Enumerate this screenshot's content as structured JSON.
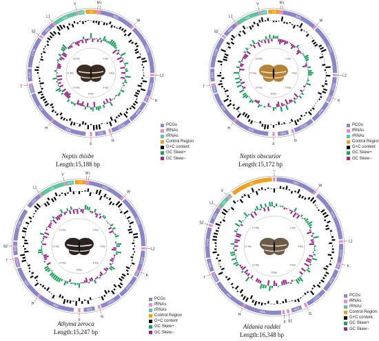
{
  "legend": [
    {
      "label": "PCGs",
      "color": "#8a86c8"
    },
    {
      "label": "tRNAs",
      "color": "#e58fc0"
    },
    {
      "label": "rRNAs",
      "color": "#5fc3a0"
    },
    {
      "label": "Control Region",
      "color": "#f0a020"
    },
    {
      "label": "G+C content",
      "color": "#000000"
    },
    {
      "label": "GC Skew+",
      "color": "#1aa35a"
    },
    {
      "label": "GC Skew−",
      "color": "#9a2a8c"
    }
  ],
  "panels": [
    {
      "species": "Neptis thisbe",
      "length": "Length:15,188 bp",
      "wing": "dark",
      "features": [
        {
          "type": "cr",
          "start": -5,
          "end": 6,
          "label": "CR"
        },
        {
          "type": "pcg",
          "start": 7,
          "end": 41,
          "label": "ND2"
        },
        {
          "type": "pcg",
          "start": 44,
          "end": 90,
          "label": "COX1"
        },
        {
          "type": "pcg",
          "start": 94,
          "end": 112,
          "label": "COX2"
        },
        {
          "type": "pcg",
          "start": 114,
          "end": 118,
          "label": "ATP8"
        },
        {
          "type": "pcg",
          "start": 119,
          "end": 140,
          "label": "ATP6"
        },
        {
          "type": "pcg",
          "start": 141,
          "end": 160,
          "label": "COX3"
        },
        {
          "type": "pcg",
          "start": 166,
          "end": 176,
          "label": "ND3"
        },
        {
          "type": "pcg",
          "start": 185,
          "end": 218,
          "label": "ND5"
        },
        {
          "type": "pcg",
          "start": 220,
          "end": 250,
          "label": "ND4"
        },
        {
          "type": "pcg",
          "start": 251,
          "end": 258,
          "label": "ND4L"
        },
        {
          "type": "pcg",
          "start": 262,
          "end": 274,
          "label": "ND6"
        },
        {
          "type": "pcg",
          "start": 275,
          "end": 304,
          "label": "CYTB"
        },
        {
          "type": "pcg",
          "start": 308,
          "end": 322,
          "label": "ND1"
        },
        {
          "type": "rrna",
          "start": 324,
          "end": 346,
          "label": "rrnL"
        },
        {
          "type": "rrna",
          "start": 348,
          "end": 354,
          "label": "rrnS"
        }
      ],
      "markers": [
        {
          "pos": 6,
          "label": "M"
        },
        {
          "pos": 8,
          "label": "I"
        },
        {
          "pos": 42,
          "label": "W"
        },
        {
          "pos": 92,
          "label": "L2"
        },
        {
          "pos": 113,
          "label": "K"
        },
        {
          "pos": 162,
          "label": "G"
        },
        {
          "pos": 180,
          "label": "F"
        },
        {
          "pos": 219,
          "label": "H"
        },
        {
          "pos": 259,
          "label": "T"
        },
        {
          "pos": 306,
          "label": "S2"
        },
        {
          "pos": 323,
          "label": "L1"
        },
        {
          "pos": 347,
          "label": "V"
        }
      ]
    },
    {
      "species": "Neptis obscurior",
      "length": "Length:15,172 bp",
      "wing": "orange",
      "features": [
        {
          "type": "cr",
          "start": -5,
          "end": 6,
          "label": "CR"
        },
        {
          "type": "pcg",
          "start": 7,
          "end": 41,
          "label": "ND2"
        },
        {
          "type": "pcg",
          "start": 44,
          "end": 90,
          "label": "COX1"
        },
        {
          "type": "pcg",
          "start": 94,
          "end": 112,
          "label": "COX2"
        },
        {
          "type": "pcg",
          "start": 114,
          "end": 118,
          "label": "ATP8"
        },
        {
          "type": "pcg",
          "start": 119,
          "end": 140,
          "label": "ATP6"
        },
        {
          "type": "pcg",
          "start": 141,
          "end": 160,
          "label": "COX3"
        },
        {
          "type": "pcg",
          "start": 166,
          "end": 176,
          "label": "ND3"
        },
        {
          "type": "pcg",
          "start": 185,
          "end": 218,
          "label": "ND5"
        },
        {
          "type": "pcg",
          "start": 220,
          "end": 250,
          "label": "ND4"
        },
        {
          "type": "pcg",
          "start": 251,
          "end": 258,
          "label": "ND4L"
        },
        {
          "type": "pcg",
          "start": 262,
          "end": 274,
          "label": "ND6"
        },
        {
          "type": "pcg",
          "start": 275,
          "end": 304,
          "label": "CYTB"
        },
        {
          "type": "pcg",
          "start": 308,
          "end": 322,
          "label": "ND1"
        },
        {
          "type": "rrna",
          "start": 324,
          "end": 346,
          "label": "rrnL"
        },
        {
          "type": "rrna",
          "start": 348,
          "end": 354,
          "label": "rrnS"
        }
      ],
      "markers": [
        {
          "pos": 6,
          "label": "M"
        },
        {
          "pos": 8,
          "label": "I"
        },
        {
          "pos": 42,
          "label": "W"
        },
        {
          "pos": 92,
          "label": "L2"
        },
        {
          "pos": 113,
          "label": "K"
        },
        {
          "pos": 162,
          "label": "G"
        },
        {
          "pos": 180,
          "label": "F"
        },
        {
          "pos": 219,
          "label": "H"
        },
        {
          "pos": 259,
          "label": "T"
        },
        {
          "pos": 306,
          "label": "S2"
        },
        {
          "pos": 323,
          "label": "L1"
        },
        {
          "pos": 347,
          "label": "V"
        }
      ]
    },
    {
      "species": "Athyma zeroca",
      "length": "Length:15,247 bp",
      "wing": "black",
      "features": [
        {
          "type": "cr",
          "start": -4,
          "end": 6,
          "label": "CR"
        },
        {
          "type": "pcg",
          "start": 7,
          "end": 41,
          "label": "ND2"
        },
        {
          "type": "pcg",
          "start": 44,
          "end": 90,
          "label": "COX1"
        },
        {
          "type": "pcg",
          "start": 94,
          "end": 112,
          "label": "COX2"
        },
        {
          "type": "pcg",
          "start": 114,
          "end": 118,
          "label": "ATP8"
        },
        {
          "type": "pcg",
          "start": 119,
          "end": 140,
          "label": "ATP6"
        },
        {
          "type": "pcg",
          "start": 141,
          "end": 160,
          "label": "COX3"
        },
        {
          "type": "pcg",
          "start": 166,
          "end": 176,
          "label": "ND3"
        },
        {
          "type": "pcg",
          "start": 185,
          "end": 218,
          "label": "ND5"
        },
        {
          "type": "pcg",
          "start": 220,
          "end": 250,
          "label": "ND4"
        },
        {
          "type": "pcg",
          "start": 251,
          "end": 258,
          "label": "ND4L"
        },
        {
          "type": "pcg",
          "start": 262,
          "end": 274,
          "label": "ND6"
        },
        {
          "type": "pcg",
          "start": 275,
          "end": 304,
          "label": "CYTB"
        },
        {
          "type": "pcg",
          "start": 308,
          "end": 322,
          "label": "ND1"
        },
        {
          "type": "rrna",
          "start": 324,
          "end": 346,
          "label": "rrnL"
        },
        {
          "type": "rrna",
          "start": 348,
          "end": 355,
          "label": "rrnS"
        }
      ],
      "markers": [
        {
          "pos": 6,
          "label": "M"
        },
        {
          "pos": 8,
          "label": "I"
        },
        {
          "pos": 42,
          "label": "W"
        },
        {
          "pos": 92,
          "label": "L2"
        },
        {
          "pos": 113,
          "label": "K"
        },
        {
          "pos": 162,
          "label": "G"
        },
        {
          "pos": 180,
          "label": "F"
        },
        {
          "pos": 219,
          "label": "H"
        },
        {
          "pos": 259,
          "label": "T"
        },
        {
          "pos": 270,
          "label": "S2"
        },
        {
          "pos": 323,
          "label": "L1"
        },
        {
          "pos": 347,
          "label": "V"
        }
      ]
    },
    {
      "species": "Aldania raddei",
      "length": "Length:16,348 bp",
      "wing": "striped",
      "features": [
        {
          "type": "cr",
          "start": -38,
          "end": -2,
          "label": "CR"
        },
        {
          "type": "pcg",
          "start": 2,
          "end": 36,
          "label": "ND2"
        },
        {
          "type": "pcg",
          "start": 40,
          "end": 84,
          "label": "COX1"
        },
        {
          "type": "pcg",
          "start": 88,
          "end": 104,
          "label": "COX2"
        },
        {
          "type": "pcg",
          "start": 106,
          "end": 110,
          "label": "ATP8"
        },
        {
          "type": "pcg",
          "start": 111,
          "end": 131,
          "label": "ATP6"
        },
        {
          "type": "pcg",
          "start": 132,
          "end": 150,
          "label": "COX3"
        },
        {
          "type": "pcg",
          "start": 156,
          "end": 165,
          "label": "ND3"
        },
        {
          "type": "pcg",
          "start": 174,
          "end": 206,
          "label": "ND5"
        },
        {
          "type": "pcg",
          "start": 208,
          "end": 237,
          "label": "ND4"
        },
        {
          "type": "pcg",
          "start": 238,
          "end": 245,
          "label": "ND4L"
        },
        {
          "type": "pcg",
          "start": 248,
          "end": 259,
          "label": "ND6"
        },
        {
          "type": "pcg",
          "start": 260,
          "end": 286,
          "label": "CYTB"
        },
        {
          "type": "pcg",
          "start": 290,
          "end": 304,
          "label": "ND1"
        },
        {
          "type": "rrna",
          "start": 306,
          "end": 316,
          "label": "rrnL"
        },
        {
          "type": "rrna",
          "start": 318,
          "end": 320,
          "label": "rrnS"
        }
      ],
      "markers": [
        {
          "pos": 0,
          "label": "M"
        },
        {
          "pos": 37,
          "label": "W"
        },
        {
          "pos": 86,
          "label": "L2"
        },
        {
          "pos": 105,
          "label": "K"
        },
        {
          "pos": 152,
          "label": "G"
        },
        {
          "pos": 168,
          "label": "S1"
        },
        {
          "pos": 172,
          "label": "F"
        },
        {
          "pos": 207,
          "label": "H"
        },
        {
          "pos": 246,
          "label": "T"
        },
        {
          "pos": 288,
          "label": "S2"
        },
        {
          "pos": 305,
          "label": "L1"
        },
        {
          "pos": 317,
          "label": "V"
        }
      ]
    }
  ],
  "scale_labels": [
    "2 kbp",
    "4 kbp",
    "6 kbp",
    "8 kbp",
    "10 kbp",
    "12 kbp",
    "14 kbp"
  ]
}
